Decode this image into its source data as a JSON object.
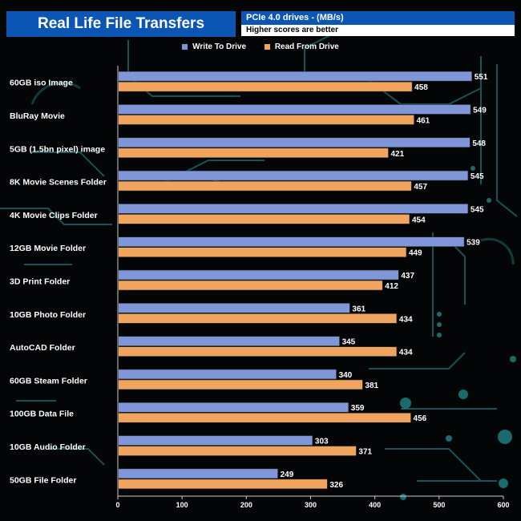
{
  "header": {
    "title": "Real Life File Transfers",
    "subtitle": "PCIe 4.0 drives - (MB/s)",
    "note": "Higher scores are better"
  },
  "colors": {
    "write": "#7f97d8",
    "read": "#f0a45e",
    "background": "#040506",
    "circuit": "#1f7d80",
    "title_bg": "#0b55b4"
  },
  "chart_data": {
    "type": "bar",
    "orientation": "horizontal",
    "categories": [
      "60GB iso Image",
      "BluRay Movie",
      "5GB (1.5bn pixel) image",
      "8K Movie Scenes Folder",
      "4K Movie Clips Folder",
      "12GB Movie Folder",
      "3D Print Folder",
      "10GB Photo Folder",
      "AutoCAD Folder",
      "60GB Steam Folder",
      "100GB Data File",
      "10GB Audio Folder",
      "50GB File Folder"
    ],
    "series": [
      {
        "name": "Write To  Drive",
        "values": [
          551,
          549,
          548,
          545,
          545,
          539,
          437,
          361,
          345,
          340,
          359,
          303,
          249
        ]
      },
      {
        "name": "Read From  Drive",
        "values": [
          458,
          461,
          421,
          457,
          454,
          449,
          412,
          434,
          434,
          381,
          456,
          371,
          326
        ]
      }
    ],
    "xlim": [
      0,
      600
    ],
    "xticks": [
      0,
      100,
      200,
      300,
      400,
      500,
      600
    ],
    "legend_position": "top-center",
    "grid": false
  }
}
